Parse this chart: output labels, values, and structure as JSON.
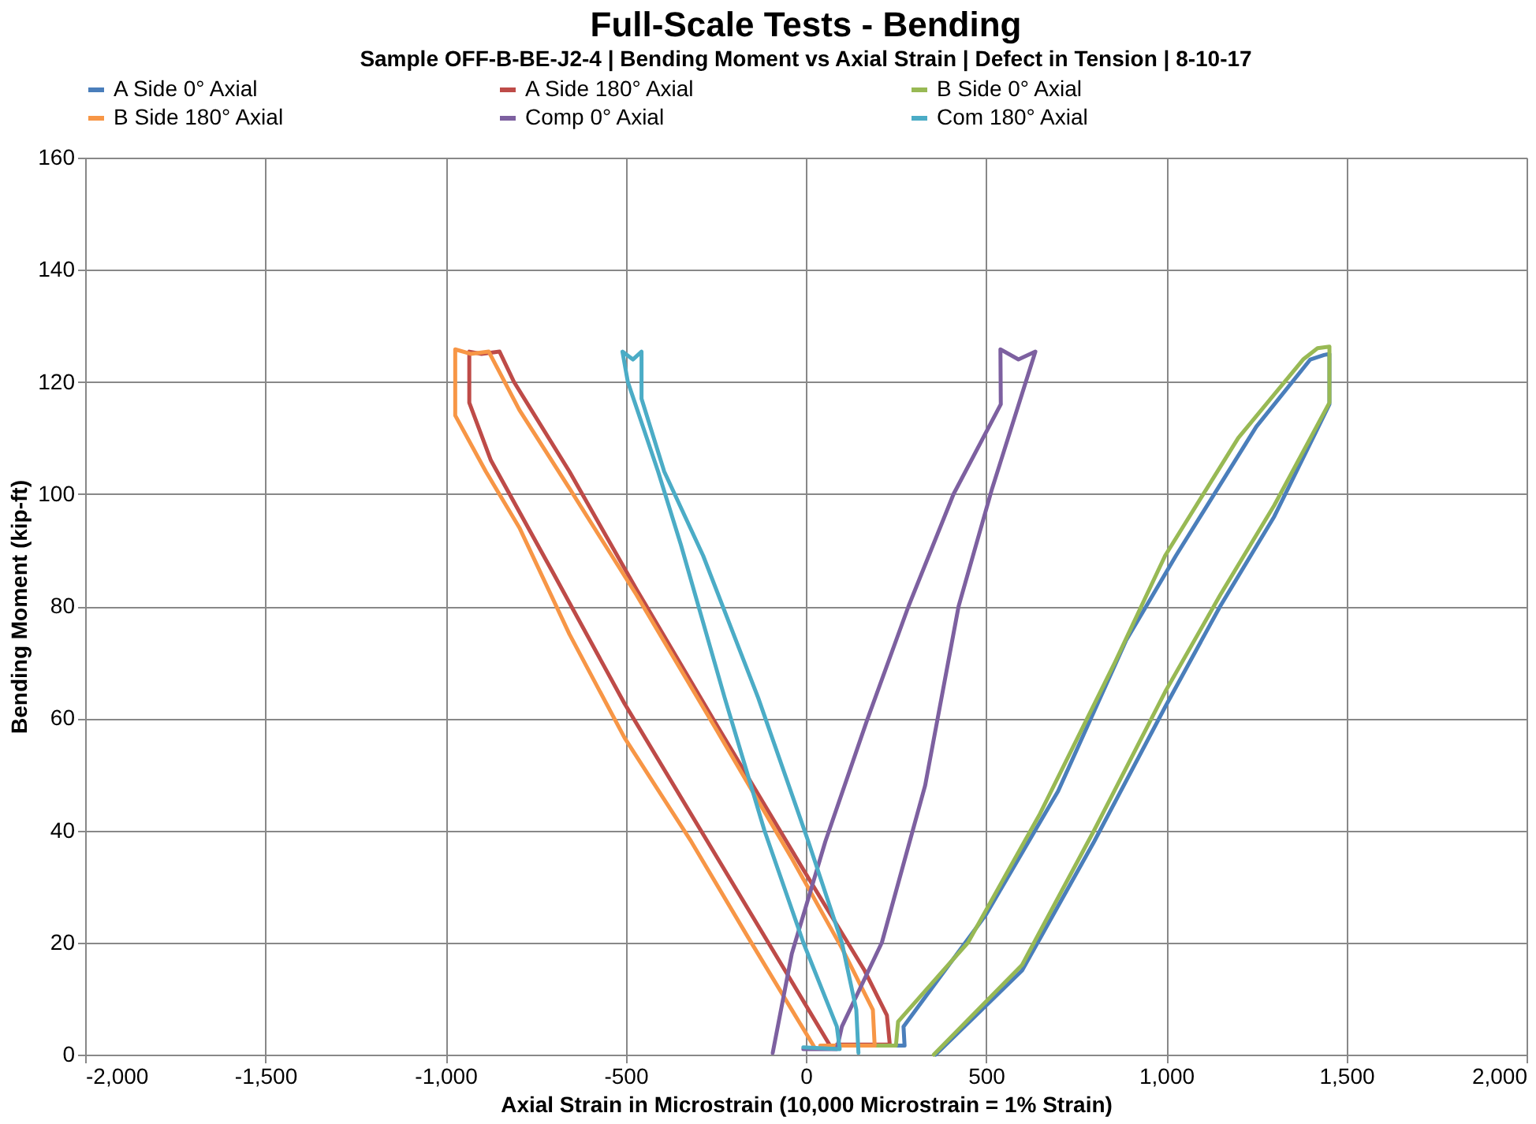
{
  "chart_data": {
    "type": "line",
    "title": "Full-Scale Tests - Bending",
    "subtitle": "Sample OFF-B-BE-J2-4 | Bending Moment vs Axial Strain | Defect in Tension | 8-10-17",
    "xlabel": "Axial Strain in Microstrain (10,000 Microstrain = 1% Strain)",
    "ylabel": "Bending Moment (kip-ft)",
    "xlim": [
      -2000,
      2000
    ],
    "xticks": [
      {
        "value": -2000,
        "label": "-2,000"
      },
      {
        "value": -1500,
        "label": "-1,500"
      },
      {
        "value": -1000,
        "label": "-1,000"
      },
      {
        "value": -500,
        "label": "-500"
      },
      0,
      500,
      {
        "value": 1000,
        "label": "1,000"
      },
      {
        "value": 1500,
        "label": "1,500"
      },
      {
        "value": 2000,
        "label": "2,000"
      }
    ],
    "ylim": [
      0,
      160
    ],
    "yticks": [
      0,
      20,
      40,
      60,
      80,
      100,
      120,
      140,
      160
    ],
    "grid": true,
    "legend": "top",
    "marker": "none",
    "line_style": "solid",
    "series": [
      {
        "name": "A Side 0° Axial",
        "color": "#4a7ebb",
        "x": [
          150,
          274,
          271,
          500,
          700,
          888,
          1027,
          1250,
          1400,
          1438,
          1453,
          1453,
          1415,
          1300,
          1150,
          997,
          800,
          600,
          360
        ],
        "values": [
          1.6,
          1.6,
          5,
          25,
          47,
          73.8,
          89,
          112,
          124,
          124.8,
          125,
          116,
          111,
          96,
          80,
          62,
          38,
          15,
          0
        ]
      },
      {
        "name": "A Side 180° Axial",
        "color": "#be4b48",
        "x": [
          86,
          233,
          225,
          163,
          -7,
          -254,
          -470,
          -656,
          -810,
          -850,
          -900,
          -934,
          -934,
          -874,
          -702,
          -503,
          -254,
          -39,
          70
        ],
        "values": [
          1.8,
          1.8,
          7,
          15,
          33,
          59.5,
          83,
          104,
          120,
          125.4,
          125,
          125.4,
          116.3,
          106,
          86,
          62.6,
          36,
          13,
          1.3
        ]
      },
      {
        "name": "B Side 0° Axial",
        "color": "#98b954",
        "x": [
          120,
          250,
          256,
          450,
          650,
          858,
          997,
          1200,
          1380,
          1420,
          1453,
          1453,
          1300,
          1150,
          997,
          800,
          600,
          355
        ],
        "values": [
          1.6,
          1.6,
          5.9,
          20,
          43,
          70,
          89,
          110,
          124,
          126,
          126.3,
          116.3,
          98,
          82,
          64.7,
          40,
          16,
          0
        ]
      },
      {
        "name": "B Side 180° Axial",
        "color": "#f79646",
        "x": [
          40,
          191,
          186,
          100,
          -39,
          -254,
          -470,
          -656,
          -795,
          -880,
          -930,
          -973,
          -973,
          -888,
          -795,
          -656,
          -503,
          -318,
          -161,
          -39,
          24
        ],
        "values": [
          1.6,
          1.6,
          8,
          19,
          35,
          58.6,
          82,
          101,
          115,
          125.4,
          125,
          125.8,
          114,
          104,
          94,
          75,
          56.5,
          38,
          21,
          8,
          1.3
        ]
      },
      {
        "name": "Comp 0° Axial",
        "color": "#7d60a0",
        "x": [
          -7,
          86,
          100,
          211,
          331,
          424,
          517,
          637,
          590,
          540,
          541,
          410,
          285,
          169,
          54,
          -39,
          -92
        ],
        "values": [
          1,
          1,
          5,
          20,
          48,
          80,
          101,
          125.4,
          124,
          125.8,
          116,
          100,
          80,
          59.5,
          38,
          18,
          0.3
        ]
      },
      {
        "name": "Com 180° Axial",
        "color": "#4bacc6",
        "x": [
          -7,
          94,
          86,
          -7,
          -115,
          -225,
          -347,
          -410,
          -494,
          -509,
          -480,
          -456,
          -456,
          -393,
          -285,
          -132,
          7,
          100,
          140,
          146
        ],
        "values": [
          1.3,
          1,
          5,
          20,
          40,
          63.6,
          91,
          104,
          120,
          125.4,
          124,
          125.4,
          117,
          104,
          89,
          63.6,
          38,
          20,
          8,
          0.3
        ]
      }
    ]
  }
}
